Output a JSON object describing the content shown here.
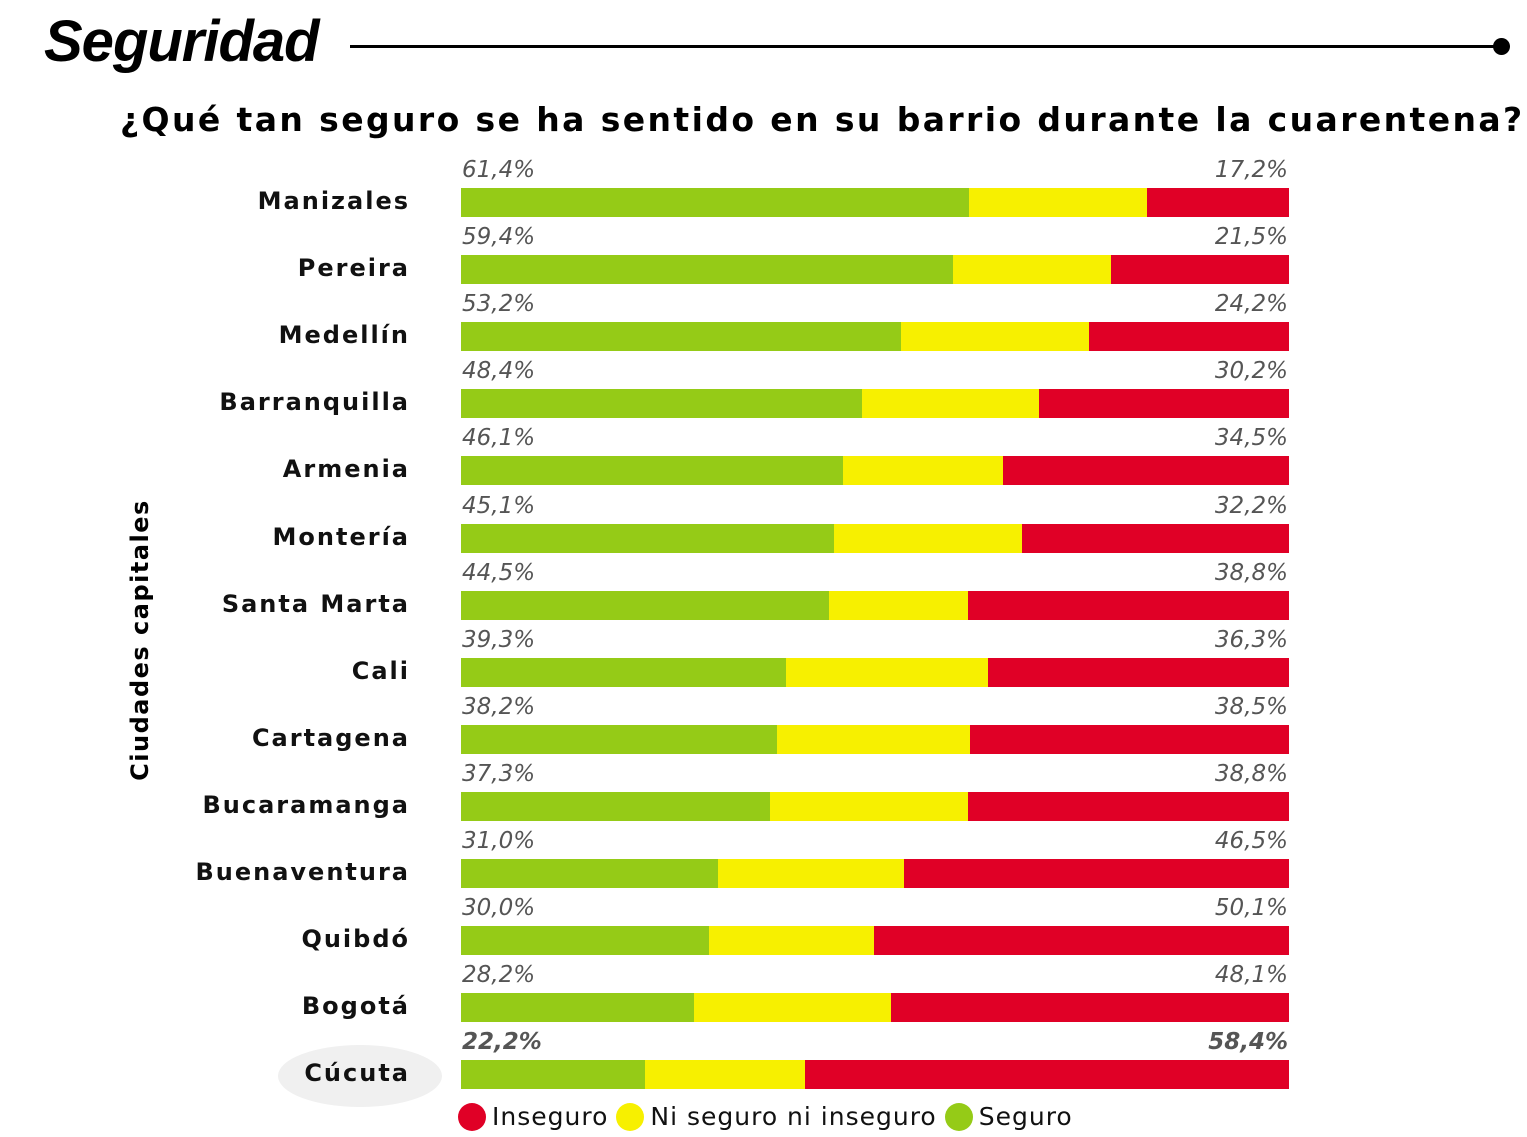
{
  "header": {
    "title": "Seguridad",
    "subtitle": "¿Qué tan seguro se ha sentido en su barrio durante la cuarentena?"
  },
  "colors": {
    "seguro": "#95cb17",
    "neutral": "#f7f000",
    "inseguro": "#e00026",
    "label": "#555555"
  },
  "chart_data": {
    "type": "bar",
    "orientation": "horizontal-stacked-100",
    "title": "¿Qué tan seguro se ha sentido en su barrio durante la cuarentena?",
    "ylabel": "Ciudades capitales",
    "xlabel": "",
    "xlim": [
      0,
      100
    ],
    "grid": false,
    "legend_position": "bottom",
    "highlighted_category": "Cúcuta",
    "categories": [
      "Manizales",
      "Pereira",
      "Medellín",
      "Barranquilla",
      "Armenia",
      "Montería",
      "Santa Marta",
      "Cali",
      "Cartagena",
      "Bucaramanga",
      "Buenaventura",
      "Quibdó",
      "Bogotá",
      "Cúcuta"
    ],
    "series": [
      {
        "name": "Seguro",
        "values": [
          61.4,
          59.4,
          53.2,
          48.4,
          46.1,
          45.1,
          44.5,
          39.3,
          38.2,
          37.3,
          31.0,
          30.0,
          28.2,
          22.2
        ]
      },
      {
        "name": "Ni seguro ni inseguro",
        "values": [
          21.4,
          19.1,
          22.6,
          21.4,
          19.4,
          22.7,
          16.7,
          24.4,
          23.3,
          23.9,
          22.5,
          19.9,
          23.7,
          19.4
        ]
      },
      {
        "name": "Inseguro",
        "values": [
          17.2,
          21.5,
          24.2,
          30.2,
          34.5,
          32.2,
          38.8,
          36.3,
          38.5,
          38.8,
          46.5,
          50.1,
          48.1,
          58.4
        ]
      }
    ],
    "labels_left": [
      "61,4%",
      "59,4%",
      "53,2%",
      "48,4%",
      "46,1%",
      "45,1%",
      "44,5%",
      "39,3%",
      "38,2%",
      "37,3%",
      "31,0%",
      "30,0%",
      "28,2%",
      "22,2%"
    ],
    "labels_right": [
      "17,2%",
      "21,5%",
      "24,2%",
      "30,2%",
      "34,5%",
      "32,2%",
      "38,8%",
      "36,3%",
      "38,5%",
      "38,8%",
      "46,5%",
      "50,1%",
      "48,1%",
      "58,4%"
    ]
  },
  "legend": [
    {
      "label": "Inseguro",
      "key": "inseguro"
    },
    {
      "label": "Ni seguro ni inseguro",
      "key": "neutral"
    },
    {
      "label": "Seguro",
      "key": "seguro"
    }
  ]
}
